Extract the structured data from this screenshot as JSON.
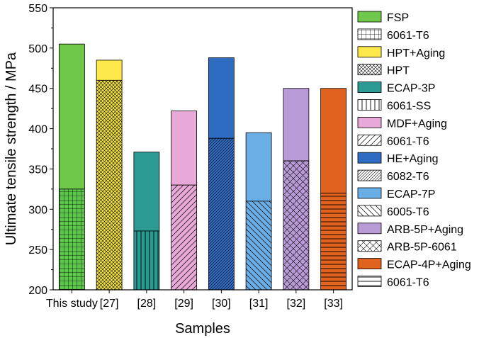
{
  "chart_data": {
    "type": "bar",
    "stacked": true,
    "xlabel": "Samples",
    "ylabel": "Ultimate tensile strength / MPa",
    "ylim": [
      200,
      550
    ],
    "yticks": [
      200,
      250,
      300,
      350,
      400,
      450,
      500,
      550
    ],
    "categories": [
      "This study",
      "[27]",
      "[28]",
      "[29]",
      "[30]",
      "[31]",
      "[32]",
      "[33]"
    ],
    "bars": [
      {
        "category": "This study",
        "bottom": {
          "label": "6061-T6",
          "value": 325,
          "color": "#5cc84a",
          "pattern": "grid"
        },
        "top": {
          "label": "FSP",
          "value": 505,
          "color": "#70c84a"
        }
      },
      {
        "category": "[27]",
        "bottom": {
          "label": "HPT",
          "value": 460,
          "color": "#f2e23a",
          "pattern": "crosshatch"
        },
        "top": {
          "label": "HPT+Aging",
          "value": 485,
          "color": "#ffe84a"
        }
      },
      {
        "category": "[28]",
        "bottom": {
          "label": "6061-SS",
          "value": 273,
          "color": "#2a9a92",
          "pattern": "vertical"
        },
        "top": {
          "label": "ECAP-3P",
          "value": 371,
          "color": "#2a9a92"
        }
      },
      {
        "category": "[29]",
        "bottom": {
          "label": "6061-T6",
          "value": 330,
          "color": "#e8a8d8",
          "pattern": "diag-up"
        },
        "top": {
          "label": "MDF+Aging",
          "value": 422,
          "color": "#e8a8d8"
        }
      },
      {
        "category": "[30]",
        "bottom": {
          "label": "6082-T6",
          "value": 388,
          "color": "#2e6cc2",
          "pattern": "diag-up-dense"
        },
        "top": {
          "label": "HE+Aging",
          "value": 488,
          "color": "#2e6cc2"
        }
      },
      {
        "category": "[31]",
        "bottom": {
          "label": "6005-T6",
          "value": 310,
          "color": "#6aaee6",
          "pattern": "diag-down"
        },
        "top": {
          "label": "ECAP-7P",
          "value": 395,
          "color": "#6aaee6"
        }
      },
      {
        "category": "[32]",
        "bottom": {
          "label": "ARB-5P-6061",
          "value": 360,
          "color": "#b89ad6",
          "pattern": "crosshatch-wide"
        },
        "top": {
          "label": "ARB-5P+Aging",
          "value": 450,
          "color": "#b89ad6"
        }
      },
      {
        "category": "[33]",
        "bottom": {
          "label": "6061-T6",
          "value": 320,
          "color": "#e0621e",
          "pattern": "horizontal"
        },
        "top": {
          "label": "ECAP-4P+Aging",
          "value": 450,
          "color": "#e0621e"
        }
      }
    ],
    "legend": {
      "placement": "right",
      "entries": [
        {
          "label": "FSP",
          "color": "#70c84a",
          "pattern": "none"
        },
        {
          "label": "6061-T6",
          "color": "#ffffff",
          "pattern": "grid"
        },
        {
          "label": "HPT+Aging",
          "color": "#ffe84a",
          "pattern": "none"
        },
        {
          "label": "HPT",
          "color": "#ffffff",
          "pattern": "crosshatch"
        },
        {
          "label": "ECAP-3P",
          "color": "#2a9a92",
          "pattern": "none"
        },
        {
          "label": "6061-SS",
          "color": "#ffffff",
          "pattern": "vertical"
        },
        {
          "label": "MDF+Aging",
          "color": "#e8a8d8",
          "pattern": "none"
        },
        {
          "label": "6061-T6",
          "color": "#ffffff",
          "pattern": "diag-up"
        },
        {
          "label": "HE+Aging",
          "color": "#2e6cc2",
          "pattern": "none"
        },
        {
          "label": "6082-T6",
          "color": "#ffffff",
          "pattern": "diag-up-dense"
        },
        {
          "label": "ECAP-7P",
          "color": "#6aaee6",
          "pattern": "none"
        },
        {
          "label": "6005-T6",
          "color": "#ffffff",
          "pattern": "diag-down"
        },
        {
          "label": "ARB-5P+Aging",
          "color": "#b89ad6",
          "pattern": "none"
        },
        {
          "label": "ARB-5P-6061",
          "color": "#ffffff",
          "pattern": "crosshatch-wide"
        },
        {
          "label": "ECAP-4P+Aging",
          "color": "#e0621e",
          "pattern": "none"
        },
        {
          "label": "6061-T6",
          "color": "#ffffff",
          "pattern": "horizontal"
        }
      ]
    }
  }
}
